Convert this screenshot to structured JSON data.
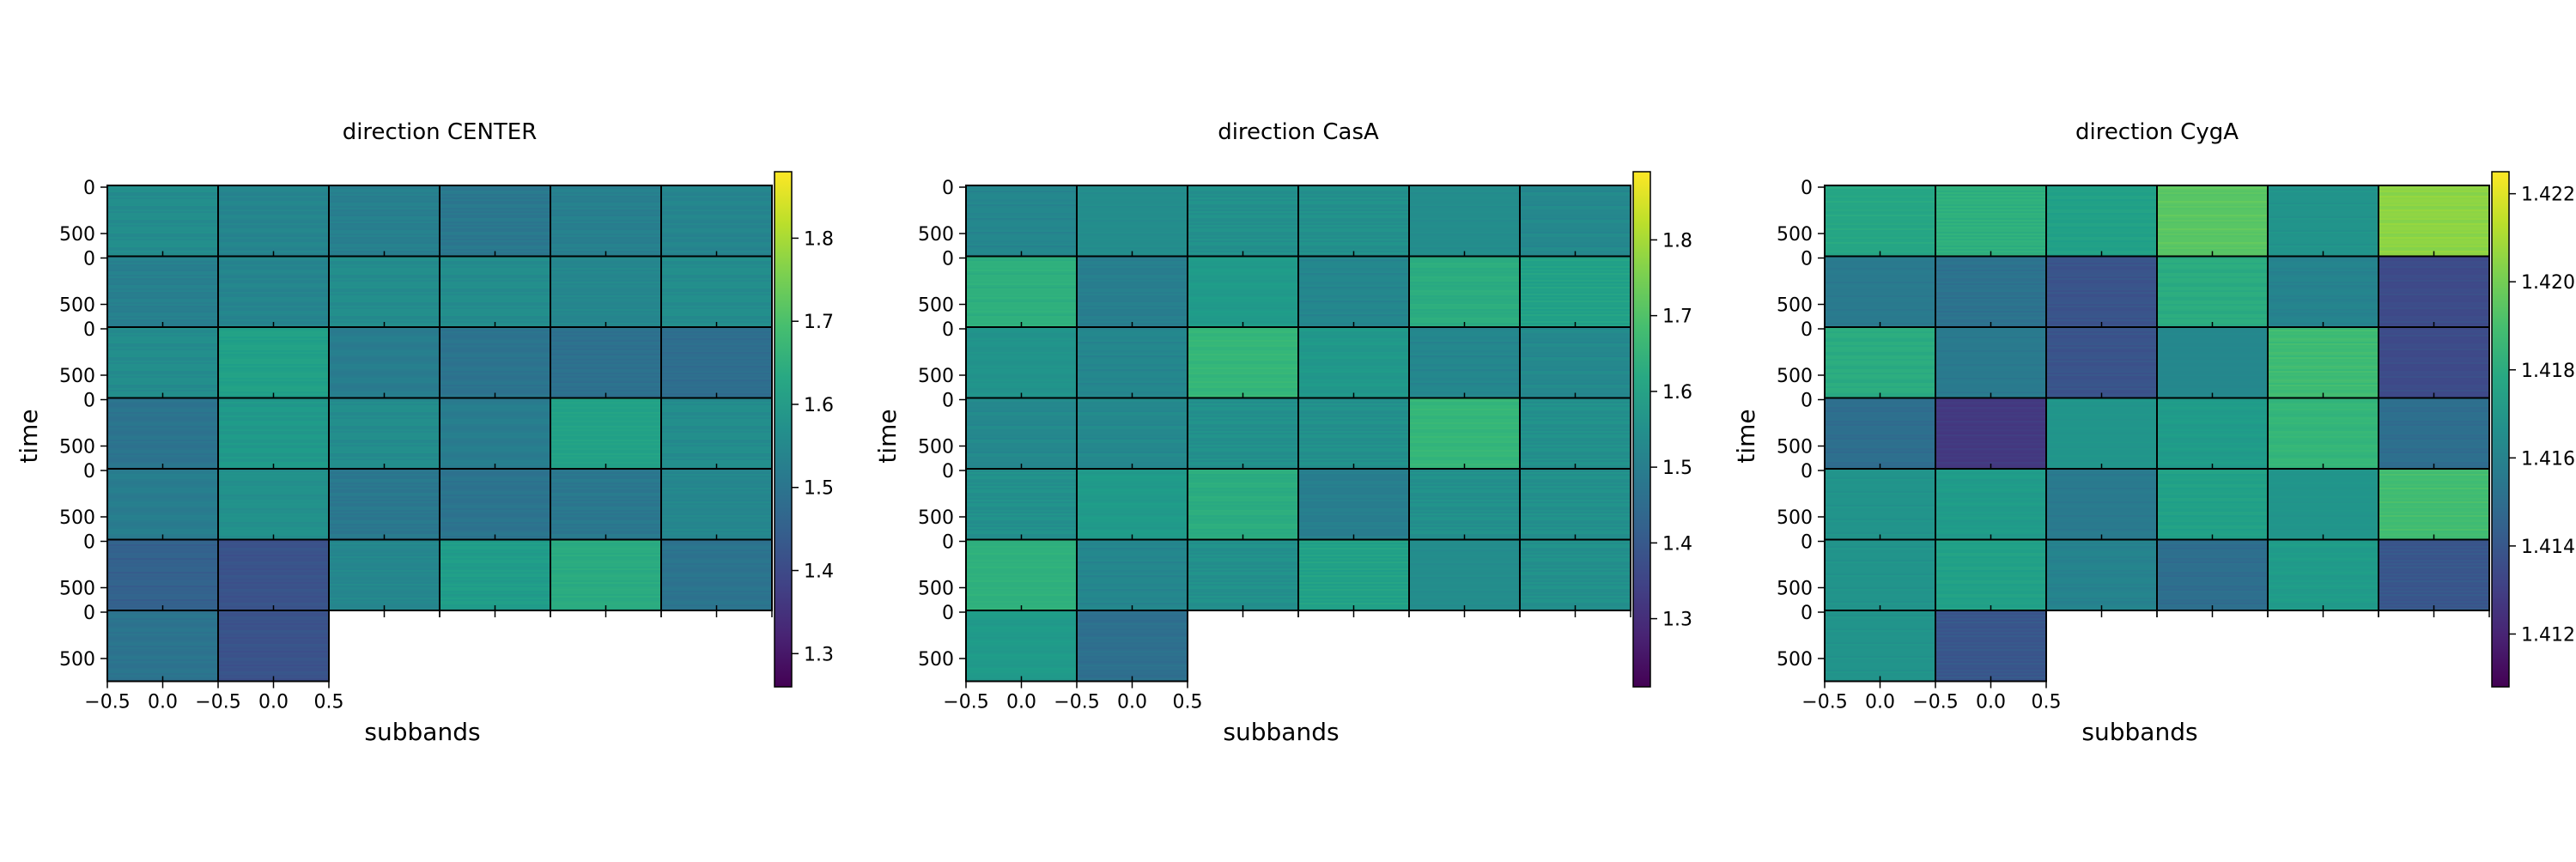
{
  "chart_data": [
    {
      "type": "heatmap",
      "title": "direction CENTER",
      "xlabel": "subbands",
      "ylabel": "time",
      "block_columns": 6,
      "block_rows": 7,
      "last_row_blocks": 2,
      "xticks": [
        "−0.5",
        "0.0",
        "−0.5",
        "0.0",
        "0.5"
      ],
      "yticks": [
        "0",
        "500"
      ],
      "colorbar": {
        "min": 1.26,
        "max": 1.88,
        "ticks": [
          "1.3",
          "1.4",
          "1.5",
          "1.6",
          "1.7",
          "1.8"
        ],
        "tick_values": [
          1.3,
          1.4,
          1.5,
          1.6,
          1.7,
          1.8
        ]
      },
      "values": [
        [
          1.56,
          1.54,
          1.53,
          1.51,
          1.53,
          1.54
        ],
        [
          1.53,
          1.54,
          1.56,
          1.56,
          1.55,
          1.56
        ],
        [
          1.56,
          1.61,
          1.52,
          1.5,
          1.49,
          1.48
        ],
        [
          1.5,
          1.59,
          1.56,
          1.52,
          1.62,
          1.56
        ],
        [
          1.52,
          1.57,
          1.51,
          1.5,
          1.51,
          1.55
        ],
        [
          1.45,
          1.42,
          1.55,
          1.6,
          1.64,
          1.5
        ],
        [
          1.5,
          1.42
        ]
      ]
    },
    {
      "type": "heatmap",
      "title": "direction CasA",
      "xlabel": "subbands",
      "ylabel": "time",
      "block_columns": 6,
      "block_rows": 7,
      "last_row_blocks": 2,
      "xticks": [
        "−0.5",
        "0.0",
        "−0.5",
        "0.0",
        "0.5"
      ],
      "yticks": [
        "0",
        "500"
      ],
      "colorbar": {
        "min": 1.21,
        "max": 1.89,
        "ticks": [
          "1.3",
          "1.4",
          "1.5",
          "1.6",
          "1.7",
          "1.8"
        ],
        "tick_values": [
          1.3,
          1.4,
          1.5,
          1.6,
          1.7,
          1.8
        ]
      },
      "values": [
        [
          1.52,
          1.54,
          1.55,
          1.55,
          1.54,
          1.53
        ],
        [
          1.64,
          1.5,
          1.58,
          1.52,
          1.63,
          1.6
        ],
        [
          1.56,
          1.52,
          1.66,
          1.57,
          1.52,
          1.53
        ],
        [
          1.53,
          1.53,
          1.55,
          1.55,
          1.66,
          1.55
        ],
        [
          1.55,
          1.58,
          1.63,
          1.5,
          1.55,
          1.55
        ],
        [
          1.65,
          1.52,
          1.55,
          1.6,
          1.54,
          1.55
        ],
        [
          1.58,
          1.46
        ]
      ]
    },
    {
      "type": "heatmap",
      "title": "direction CygA",
      "xlabel": "subbands",
      "ylabel": "time",
      "block_columns": 6,
      "block_rows": 7,
      "last_row_blocks": 2,
      "xticks": [
        "−0.5",
        "0.0",
        "−0.5",
        "0.0",
        "0.5"
      ],
      "yticks": [
        "0",
        "500"
      ],
      "colorbar": {
        "min": 1.4108,
        "max": 1.4225,
        "ticks": [
          "1.412",
          "1.414",
          "1.416",
          "1.418",
          "1.420",
          "1.422"
        ],
        "tick_values": [
          1.412,
          1.414,
          1.416,
          1.418,
          1.42,
          1.422
        ]
      },
      "values": [
        [
          1.4178,
          1.4182,
          1.4175,
          1.4195,
          1.4168,
          1.4205
        ],
        [
          1.4155,
          1.4152,
          1.4138,
          1.418,
          1.416,
          1.4135
        ],
        [
          1.418,
          1.4155,
          1.4138,
          1.4162,
          1.4188,
          1.4135
        ],
        [
          1.415,
          1.4128,
          1.417,
          1.4172,
          1.4185,
          1.415
        ],
        [
          1.4168,
          1.4172,
          1.4155,
          1.4175,
          1.417,
          1.419
        ],
        [
          1.4168,
          1.4175,
          1.416,
          1.415,
          1.4172,
          1.414
        ],
        [
          1.4168,
          1.414
        ]
      ]
    }
  ]
}
